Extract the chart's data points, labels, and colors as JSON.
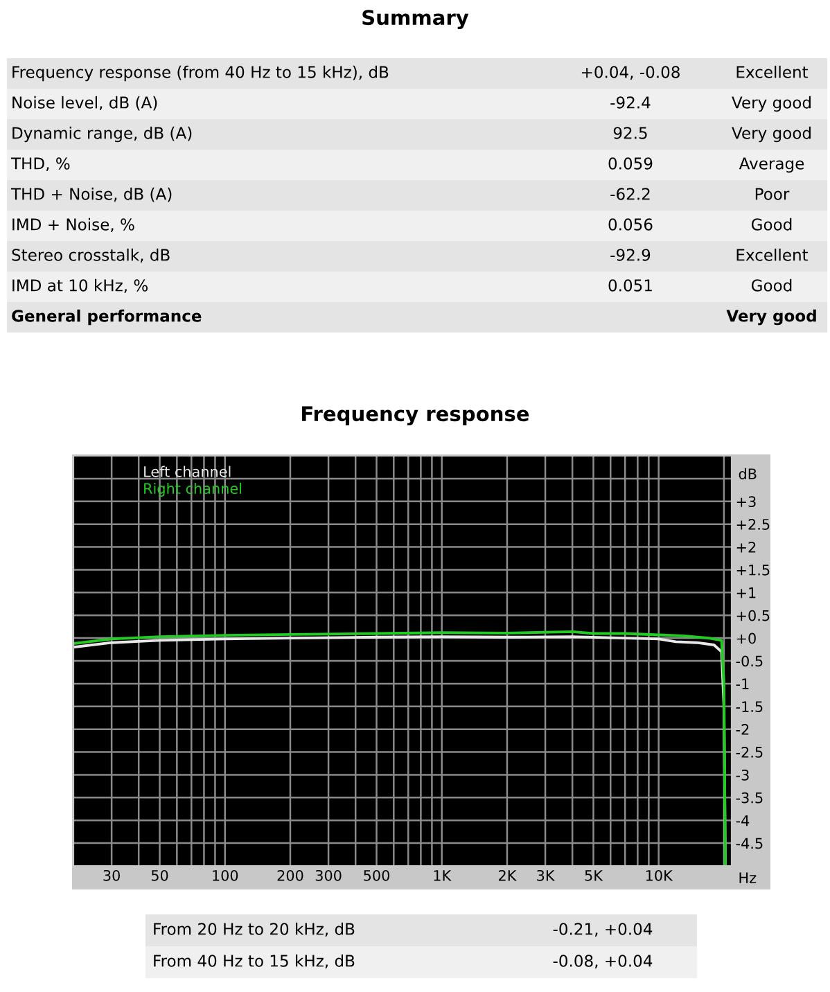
{
  "chart_data": [
    {
      "type": "other",
      "title": "Summary",
      "categories": [
        "Frequency response (from 40 Hz to 15 kHz), dB",
        "Noise level, dB (A)",
        "Dynamic range, dB (A)",
        "THD, %",
        "THD + Noise, dB (A)",
        "IMD + Noise, %",
        "Stereo crosstalk, dB",
        "IMD at 10 kHz, %",
        "General performance"
      ],
      "value_labels": [
        "+0.04, -0.08",
        "-92.4",
        "92.5",
        "0.059",
        "-62.2",
        "0.056",
        "-92.9",
        "0.051",
        null
      ],
      "annotations": [
        "Excellent",
        "Very good",
        "Very good",
        "Average",
        "Poor",
        "Good",
        "Excellent",
        "Good",
        "Very good"
      ]
    },
    {
      "type": "line",
      "title": "Frequency response",
      "xlabel": "Hz",
      "ylabel": "dB",
      "log": "x",
      "grid": true,
      "legend": "top left",
      "xlim": [
        20,
        21700
      ],
      "ylim": [
        -5,
        4
      ],
      "xticks": [
        30,
        {
          "value": 40,
          "label": null
        },
        50,
        {
          "value": 60,
          "label": null
        },
        {
          "value": 70,
          "label": null
        },
        {
          "value": 80,
          "label": null
        },
        {
          "value": 90,
          "label": null
        },
        100,
        200,
        300,
        {
          "value": 400,
          "label": null
        },
        500,
        {
          "value": 600,
          "label": null
        },
        {
          "value": 700,
          "label": null
        },
        {
          "value": 800,
          "label": null
        },
        {
          "value": 900,
          "label": null
        },
        {
          "value": 1000,
          "label": "1K"
        },
        {
          "value": 2000,
          "label": "2K"
        },
        {
          "value": 3000,
          "label": "3K"
        },
        {
          "value": 4000,
          "label": null
        },
        {
          "value": 5000,
          "label": "5K"
        },
        {
          "value": 6000,
          "label": null
        },
        {
          "value": 7000,
          "label": null
        },
        {
          "value": 8000,
          "label": null
        },
        {
          "value": 9000,
          "label": null
        },
        {
          "value": 10000,
          "label": "10K"
        },
        {
          "value": 20000,
          "label": null
        }
      ],
      "yticks": [
        {
          "value": -4.5,
          "label": "-4.5"
        },
        {
          "value": -4,
          "label": "-4"
        },
        {
          "value": -3.5,
          "label": "-3.5"
        },
        {
          "value": -3,
          "label": "-3"
        },
        {
          "value": -2.5,
          "label": "-2.5"
        },
        {
          "value": -2,
          "label": "-2"
        },
        {
          "value": -1.5,
          "label": "-1.5"
        },
        {
          "value": -1,
          "label": "-1"
        },
        {
          "value": -0.5,
          "label": "-0.5"
        },
        {
          "value": 0,
          "label": "+0"
        },
        {
          "value": 0.5,
          "label": "+0.5"
        },
        {
          "value": 1,
          "label": "+1"
        },
        {
          "value": 1.5,
          "label": "+1.5"
        },
        {
          "value": 2,
          "label": "+2"
        },
        {
          "value": 2.5,
          "label": "+2.5"
        },
        {
          "value": 3,
          "label": "+3"
        },
        {
          "value": 3.5,
          "label": null
        }
      ],
      "series": [
        {
          "name": "Left channel",
          "color": "#e8e8e8",
          "x": [
            20,
            30,
            50,
            100,
            200,
            500,
            1000,
            2000,
            4000,
            7000,
            10000,
            12000,
            15000,
            18000,
            19500,
            20000,
            20300
          ],
          "values": [
            -0.2,
            -0.1,
            -0.05,
            -0.02,
            0.0,
            0.02,
            0.03,
            0.02,
            0.03,
            0.0,
            -0.02,
            -0.08,
            -0.1,
            -0.15,
            -0.3,
            -1.5,
            -5
          ]
        },
        {
          "name": "Right channel",
          "color": "#22cc22",
          "x": [
            20,
            30,
            50,
            100,
            200,
            500,
            1000,
            2000,
            4000,
            5000,
            7000,
            10000,
            13000,
            17000,
            19500,
            20000,
            20300
          ],
          "values": [
            -0.12,
            -0.02,
            0.03,
            0.06,
            0.08,
            0.1,
            0.12,
            0.11,
            0.14,
            0.1,
            0.1,
            0.07,
            0.05,
            0.0,
            -0.05,
            -1,
            -5
          ]
        }
      ]
    },
    {
      "type": "other",
      "categories": [
        "From 20 Hz to 20 kHz, dB",
        "From 40 Hz to 15 kHz, dB"
      ],
      "value_labels": [
        "-0.21, +0.04",
        "-0.08, +0.04"
      ]
    }
  ]
}
